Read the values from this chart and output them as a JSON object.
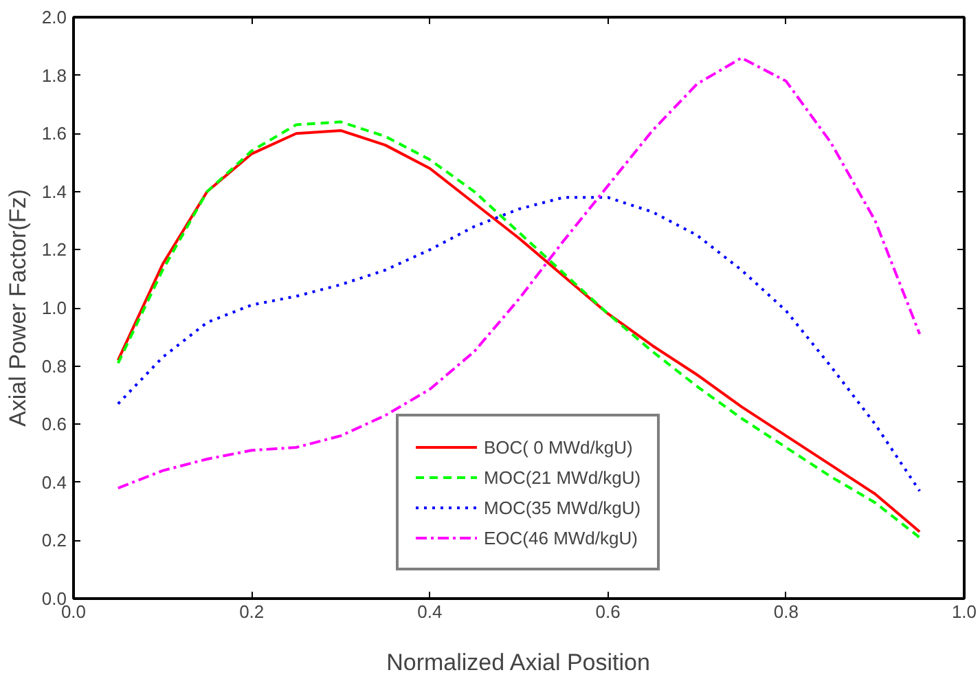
{
  "chart_data": {
    "type": "line",
    "xlabel": "Normalized Axial Position",
    "ylabel": "Axial Power Factor(Fz)",
    "xlim": [
      0,
      1
    ],
    "ylim": [
      0,
      2
    ],
    "xticks": [
      {
        "value": 0,
        "label": "0.0"
      },
      {
        "value": 0.2,
        "label": "0.2"
      },
      {
        "value": 0.4,
        "label": "0.4"
      },
      {
        "value": 0.6,
        "label": "0.6"
      },
      {
        "value": 0.8,
        "label": "0.8"
      },
      {
        "value": 1,
        "label": "1.0"
      }
    ],
    "yticks": [
      {
        "value": 0,
        "label": "0.0"
      },
      {
        "value": 0.2,
        "label": "0.2"
      },
      {
        "value": 0.4,
        "label": "0.4"
      },
      {
        "value": 0.6,
        "label": "0.6"
      },
      {
        "value": 0.8,
        "label": "0.8"
      },
      {
        "value": 1,
        "label": "1.0"
      },
      {
        "value": 1.2,
        "label": "1.2"
      },
      {
        "value": 1.4,
        "label": "1.4"
      },
      {
        "value": 1.6,
        "label": "1.6"
      },
      {
        "value": 1.8,
        "label": "1.8"
      },
      {
        "value": 2,
        "label": "2.0"
      }
    ],
    "grid": false,
    "legend": "bottom right",
    "marker": "none",
    "x": [
      0.05,
      0.1,
      0.15,
      0.2,
      0.25,
      0.3,
      0.35,
      0.4,
      0.45,
      0.5,
      0.55,
      0.6,
      0.65,
      0.7,
      0.75,
      0.8,
      0.85,
      0.9,
      0.95
    ],
    "series": [
      {
        "name": "BOC( 0 MWd/kgU)",
        "color": "#ff0000",
        "line_style": "solid",
        "values": [
          0.82,
          1.15,
          1.4,
          1.53,
          1.6,
          1.61,
          1.56,
          1.48,
          1.36,
          1.24,
          1.11,
          0.98,
          0.87,
          0.77,
          0.66,
          0.56,
          0.46,
          0.36,
          0.23
        ]
      },
      {
        "name": "MOC(21 MWd/kgU)",
        "color": "#00ff00",
        "line_style": "dashed",
        "values": [
          0.81,
          1.13,
          1.4,
          1.54,
          1.63,
          1.64,
          1.59,
          1.51,
          1.4,
          1.26,
          1.12,
          0.98,
          0.85,
          0.73,
          0.62,
          0.52,
          0.42,
          0.33,
          0.21
        ]
      },
      {
        "name": "MOC(35 MWd/kgU)",
        "color": "#0000ff",
        "line_style": "dotted",
        "values": [
          0.67,
          0.83,
          0.95,
          1.01,
          1.04,
          1.08,
          1.13,
          1.2,
          1.28,
          1.34,
          1.38,
          1.38,
          1.33,
          1.25,
          1.13,
          0.99,
          0.8,
          0.6,
          0.37
        ]
      },
      {
        "name": "EOC(46 MWd/kgU)",
        "color": "#ff00ff",
        "line_style": "dashdot",
        "values": [
          0.38,
          0.44,
          0.48,
          0.51,
          0.52,
          0.56,
          0.63,
          0.72,
          0.85,
          1.03,
          1.23,
          1.42,
          1.61,
          1.77,
          1.86,
          1.78,
          1.57,
          1.3,
          0.91
        ]
      }
    ]
  }
}
